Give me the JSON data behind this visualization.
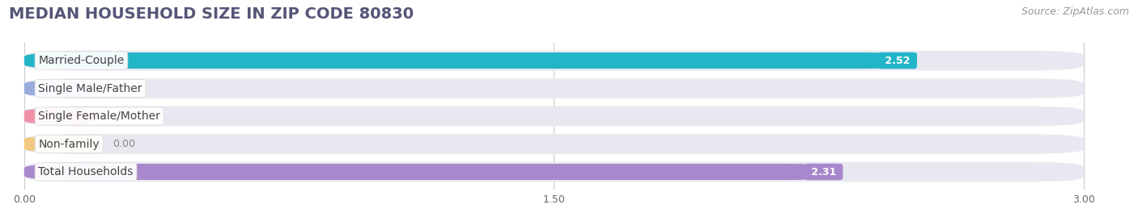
{
  "title": "MEDIAN HOUSEHOLD SIZE IN ZIP CODE 80830",
  "source": "Source: ZipAtlas.com",
  "categories": [
    "Married-Couple",
    "Single Male/Father",
    "Single Female/Mother",
    "Non-family",
    "Total Households"
  ],
  "values": [
    2.52,
    0.0,
    0.0,
    0.0,
    2.31
  ],
  "bar_colors": [
    "#22b5c8",
    "#99aadd",
    "#f090a8",
    "#f5c880",
    "#a888cc"
  ],
  "xlim": [
    0,
    3.0
  ],
  "xticks": [
    0.0,
    1.5,
    3.0
  ],
  "xtick_labels": [
    "0.00",
    "1.50",
    "3.00"
  ],
  "title_fontsize": 14,
  "source_fontsize": 9,
  "label_fontsize": 10,
  "value_fontsize": 9,
  "figsize": [
    14.06,
    2.69
  ],
  "dpi": 100,
  "background_color": "#ffffff",
  "bar_track_color": "#e8e8f0",
  "bar_track_shadow": "#d0d0dc",
  "grid_color": "#cccccc",
  "title_color": "#555577",
  "source_color": "#999999",
  "label_color": "#444444",
  "value_zero_color": "#888888"
}
